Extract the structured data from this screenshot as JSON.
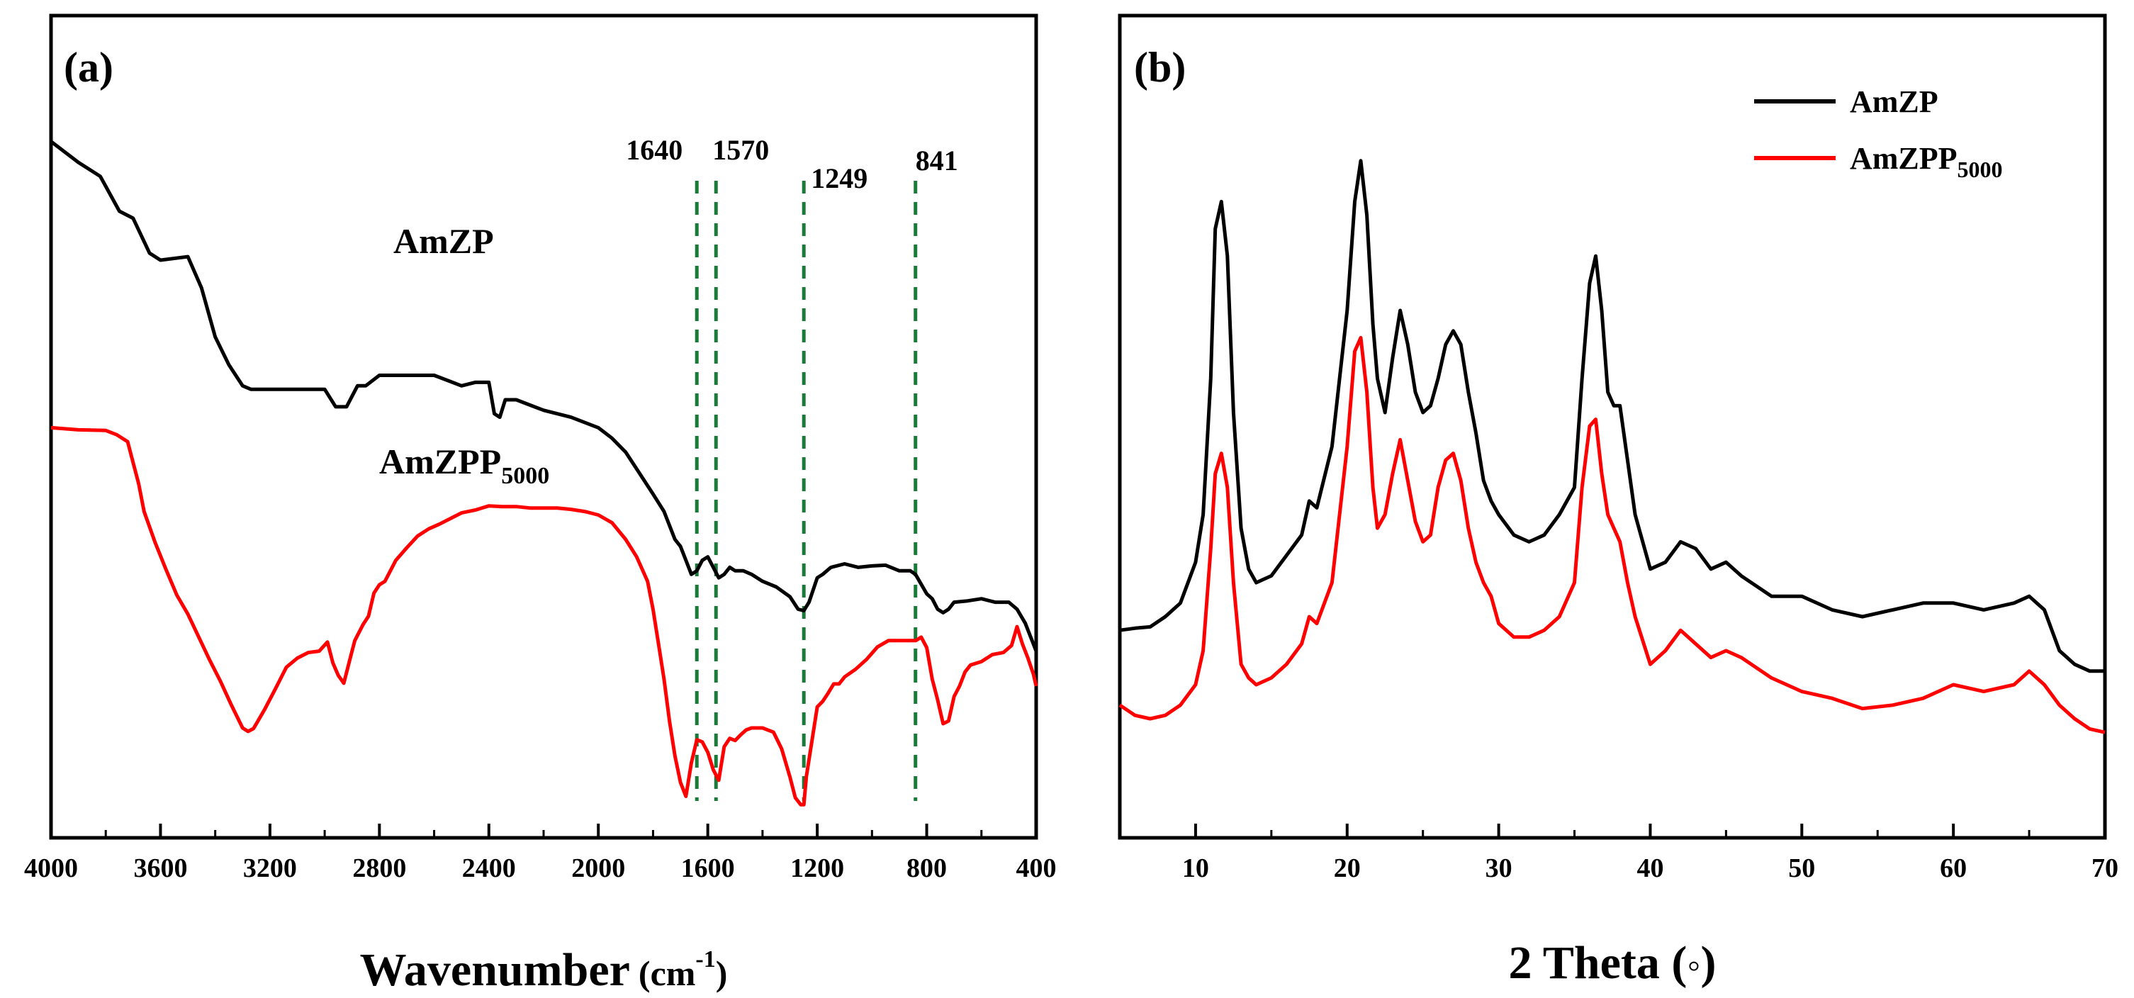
{
  "chart_data": [
    {
      "panel": "(a)",
      "type": "line",
      "xlabel": "Wavenumber (cm-1)",
      "xlabel_main": "Wavenumber",
      "xlabel_unit_open": "(cm",
      "xlabel_unit_sup": "-1",
      "xlabel_unit_close": ")",
      "xlim": [
        4000,
        400
      ],
      "ylim": [
        0,
        100
      ],
      "xticks": [
        "4000",
        "3600",
        "3200",
        "2800",
        "2400",
        "2000",
        "1600",
        "1200",
        "800",
        "400"
      ],
      "xtick_values": [
        4000,
        3600,
        3200,
        2800,
        2400,
        2000,
        1600,
        1200,
        800,
        400
      ],
      "series": [
        {
          "name": "AmZP",
          "label_main": "AmZP",
          "color": "#000000",
          "x": [
            4000,
            3900,
            3820,
            3750,
            3700,
            3640,
            3600,
            3500,
            3450,
            3400,
            3350,
            3300,
            3270,
            3200,
            3100,
            3000,
            2960,
            2920,
            2880,
            2850,
            2800,
            2700,
            2600,
            2500,
            2450,
            2400,
            2380,
            2360,
            2340,
            2300,
            2200,
            2100,
            2000,
            1950,
            1900,
            1850,
            1800,
            1760,
            1720,
            1700,
            1680,
            1660,
            1640,
            1620,
            1600,
            1580,
            1560,
            1540,
            1520,
            1500,
            1470,
            1440,
            1400,
            1350,
            1300,
            1270,
            1249,
            1230,
            1200,
            1180,
            1150,
            1100,
            1050,
            1000,
            950,
            900,
            860,
            841,
            800,
            780,
            760,
            740,
            720,
            700,
            650,
            600,
            550,
            500,
            470,
            440,
            420,
            400
          ],
          "y": [
            97,
            94,
            92,
            87,
            86,
            81,
            80,
            80.5,
            76,
            69,
            65,
            62,
            61.5,
            61.5,
            61.5,
            61.5,
            59,
            59,
            62,
            62,
            63.5,
            63.5,
            63.5,
            62,
            62.5,
            62.5,
            58,
            57.5,
            60,
            60,
            58.5,
            57.5,
            56,
            54.5,
            52.5,
            49.5,
            46.5,
            44,
            40,
            39,
            37,
            35,
            35.5,
            37,
            37.5,
            36,
            34.5,
            35,
            36,
            35.5,
            35.5,
            35,
            34,
            33.2,
            31.8,
            30,
            29.8,
            31,
            34.5,
            35,
            36,
            36.5,
            36,
            36.2,
            36.3,
            35.5,
            35.5,
            35,
            32.2,
            31.5,
            30,
            29.5,
            30,
            31,
            31.2,
            31.5,
            31,
            31,
            30,
            28,
            26,
            24
          ]
        },
        {
          "name": "AmZPP5000",
          "label_main": "AmZPP",
          "label_sub": "5000",
          "color": "#ff0000",
          "x": [
            4000,
            3900,
            3800,
            3760,
            3720,
            3700,
            3680,
            3660,
            3620,
            3580,
            3540,
            3500,
            3460,
            3420,
            3380,
            3340,
            3300,
            3280,
            3260,
            3220,
            3180,
            3140,
            3100,
            3060,
            3020,
            2990,
            2970,
            2950,
            2930,
            2910,
            2890,
            2860,
            2840,
            2820,
            2800,
            2780,
            2760,
            2740,
            2700,
            2660,
            2620,
            2580,
            2540,
            2500,
            2450,
            2400,
            2350,
            2300,
            2250,
            2200,
            2150,
            2100,
            2050,
            2000,
            1950,
            1900,
            1860,
            1820,
            1800,
            1780,
            1760,
            1740,
            1720,
            1700,
            1680,
            1660,
            1640,
            1620,
            1600,
            1580,
            1560,
            1540,
            1520,
            1500,
            1480,
            1460,
            1440,
            1400,
            1360,
            1330,
            1300,
            1280,
            1260,
            1249,
            1240,
            1220,
            1200,
            1180,
            1160,
            1140,
            1120,
            1100,
            1060,
            1020,
            980,
            940,
            900,
            860,
            840,
            820,
            800,
            780,
            760,
            740,
            720,
            700,
            680,
            660,
            640,
            600,
            560,
            520,
            490,
            470,
            450,
            430,
            410,
            400
          ],
          "y": [
            56,
            55.7,
            55.6,
            55,
            54,
            51,
            48,
            44,
            39.6,
            35.7,
            32,
            29.3,
            26,
            22.7,
            19.6,
            16.2,
            13,
            12.5,
            12.9,
            15.6,
            18.6,
            21.7,
            23,
            23.8,
            24,
            25.3,
            22.3,
            20.5,
            19.4,
            22.5,
            25.5,
            27.8,
            29,
            32.3,
            33.5,
            34,
            35.5,
            37,
            38.8,
            40.5,
            41.5,
            42.2,
            43,
            43.8,
            44.2,
            44.8,
            44.7,
            44.7,
            44.5,
            44.5,
            44.5,
            44.3,
            44,
            43.5,
            42.4,
            40,
            37.5,
            34,
            30,
            25,
            20,
            14,
            9,
            5.2,
            3.2,
            8,
            11.3,
            11,
            9.5,
            7,
            5.5,
            10.3,
            11.5,
            11.2,
            12,
            12.7,
            13,
            13,
            12.4,
            10,
            6,
            3,
            2,
            2,
            6,
            11,
            16,
            16.8,
            18,
            19.3,
            19.3,
            20.3,
            21.4,
            22.8,
            24.6,
            25.5,
            25.5,
            25.5,
            25.5,
            26,
            24.5,
            20,
            17,
            13.6,
            14,
            17.5,
            19,
            21,
            22,
            22.5,
            23.5,
            23.8,
            24.8,
            27.5,
            25,
            23,
            20.7,
            19
          ]
        }
      ],
      "annotations": [
        {
          "text": "1640",
          "x": 1640
        },
        {
          "text": "1570",
          "x": 1570
        },
        {
          "text": "1249",
          "x": 1249
        },
        {
          "text": "841",
          "x": 841
        }
      ]
    },
    {
      "panel": "(b)",
      "type": "line",
      "xlabel": "2 Theta (◦)",
      "xlabel_main": "2 Theta (",
      "xlabel_symbol": "◦",
      "xlabel_close": ")",
      "xlim": [
        5,
        70
      ],
      "ylim": [
        0,
        100
      ],
      "xticks": [
        "10",
        "20",
        "30",
        "40",
        "50",
        "60",
        "70"
      ],
      "xtick_values": [
        10,
        20,
        30,
        40,
        50,
        60,
        70
      ],
      "legend_position": "top-right",
      "series": [
        {
          "name": "AmZP",
          "label_main": "AmZP",
          "color": "#000000",
          "x": [
            5,
            6,
            7,
            8,
            9,
            10,
            10.5,
            11,
            11.3,
            11.7,
            12.1,
            12.5,
            13,
            13.5,
            14,
            15,
            16,
            17,
            17.5,
            18,
            19,
            20,
            20.5,
            20.9,
            21.3,
            21.7,
            22,
            22.5,
            23,
            23.5,
            24,
            24.5,
            25,
            25.5,
            26,
            26.5,
            27,
            27.5,
            28,
            28.5,
            29,
            29.5,
            30,
            31,
            32,
            33,
            34,
            35,
            35.5,
            36,
            36.4,
            36.8,
            37.2,
            37.6,
            38,
            38.5,
            39,
            40,
            41,
            42,
            43,
            44,
            45,
            46,
            48,
            50,
            52,
            54,
            56,
            58,
            60,
            62,
            64,
            65,
            66,
            67,
            68,
            69,
            70
          ],
          "y": [
            23,
            23.3,
            23.5,
            25,
            27,
            33,
            40,
            60,
            82,
            86,
            78,
            55,
            38,
            32,
            30,
            31,
            34,
            37,
            42,
            41,
            50,
            70,
            86,
            92,
            84,
            68,
            60,
            55,
            63,
            70,
            65,
            58,
            55,
            56,
            60,
            65,
            67,
            65,
            58,
            52,
            45,
            42,
            40,
            37,
            36,
            37,
            40,
            44,
            60,
            74,
            78,
            70,
            58,
            56,
            56,
            48,
            40,
            32,
            33,
            36,
            35,
            32,
            33,
            31,
            28,
            28,
            26,
            25,
            26,
            27,
            27,
            26,
            27,
            28,
            26,
            20,
            18,
            17,
            17
          ]
        },
        {
          "name": "AmZPP5000",
          "label_main": "AmZPP",
          "label_sub": "5000",
          "color": "#ff0000",
          "x": [
            5,
            6,
            7,
            8,
            9,
            10,
            10.5,
            11,
            11.3,
            11.7,
            12.1,
            12.5,
            13,
            13.5,
            14,
            15,
            16,
            17,
            17.5,
            18,
            19,
            20,
            20.5,
            20.9,
            21.3,
            21.7,
            22,
            22.5,
            23,
            23.5,
            24,
            24.5,
            25,
            25.5,
            26,
            26.5,
            27,
            27.5,
            28,
            28.5,
            29,
            29.5,
            30,
            31,
            32,
            33,
            34,
            35,
            35.5,
            36,
            36.4,
            36.8,
            37.2,
            37.6,
            38,
            38.5,
            39,
            40,
            41,
            42,
            43,
            44,
            45,
            46,
            48,
            50,
            52,
            54,
            56,
            58,
            60,
            62,
            64,
            65,
            66,
            67,
            68,
            69,
            70
          ],
          "y": [
            12,
            10.5,
            10,
            10.5,
            12,
            15,
            20,
            35,
            46,
            49,
            44,
            30,
            18,
            16,
            15,
            16,
            18,
            21,
            25,
            24,
            30,
            50,
            64,
            66,
            58,
            44,
            38,
            40,
            46,
            51,
            45,
            39,
            36,
            37,
            44,
            48,
            49,
            45,
            38,
            33,
            30,
            28,
            24,
            22,
            22,
            23,
            25,
            30,
            44,
            53,
            54,
            46,
            40,
            38,
            36,
            30,
            25,
            18,
            20,
            23,
            21,
            19,
            20,
            19,
            16,
            14,
            13,
            11.5,
            12,
            13,
            15,
            14,
            15,
            17,
            15,
            12,
            10,
            8.5,
            8
          ]
        }
      ]
    }
  ]
}
